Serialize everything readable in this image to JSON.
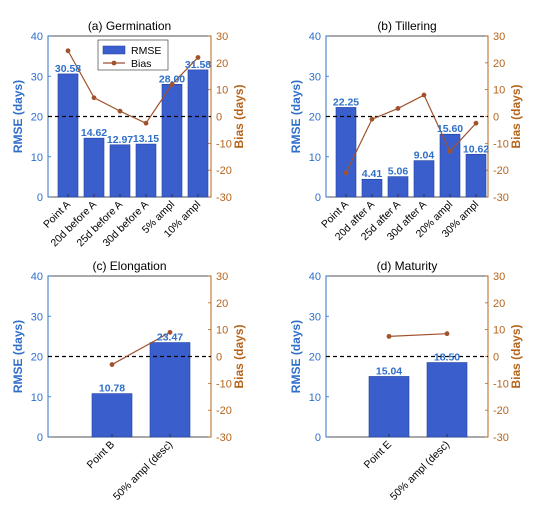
{
  "colors": {
    "rmse": "#3a5fcd",
    "rmse_edge": "#1f3f9e",
    "rmse_axis": "#2f6fc9",
    "bias": "#a0522d",
    "bias_axis": "#b5651d",
    "refline": "#000000"
  },
  "legend": {
    "rmse": "RMSE",
    "bias": "Bias"
  },
  "chart_data": [
    {
      "type": "bar",
      "title": "(a) Germination",
      "ylabel": "RMSE (days)",
      "y2label": "Bias (days)",
      "ylim": [
        0,
        40
      ],
      "y2lim": [
        -30,
        30
      ],
      "yticks": [
        0,
        10,
        20,
        30,
        40
      ],
      "y2ticks": [
        -30,
        -20,
        -10,
        0,
        10,
        20,
        30
      ],
      "categories": [
        "Point A",
        "20d before A",
        "25d before A",
        "30d before A",
        "5% ampl",
        "10% ampl"
      ],
      "series": [
        {
          "name": "RMSE",
          "type": "bar",
          "values": [
            30.58,
            14.62,
            12.97,
            13.15,
            28.0,
            31.58
          ],
          "labels": [
            "30.58",
            "14.62",
            "12.97",
            "13.15",
            "28.00",
            "31.58"
          ]
        },
        {
          "name": "Bias",
          "type": "line",
          "axis": "right",
          "values": [
            24.5,
            7.0,
            2.0,
            -2.5,
            12.0,
            22.0
          ]
        }
      ],
      "reference_line": {
        "value": 20,
        "style": "dashed"
      },
      "legend_position": "top"
    },
    {
      "type": "bar",
      "title": "(b) Tillering",
      "ylabel": "RMSE (days)",
      "y2label": "Bias (days)",
      "ylim": [
        0,
        40
      ],
      "y2lim": [
        -30,
        30
      ],
      "yticks": [
        0,
        10,
        20,
        30,
        40
      ],
      "y2ticks": [
        -30,
        -20,
        -10,
        0,
        10,
        20,
        30
      ],
      "categories": [
        "Point A",
        "20d after A",
        "25d after A",
        "30d after A",
        "20% ampl",
        "30% ampl"
      ],
      "series": [
        {
          "name": "RMSE",
          "type": "bar",
          "values": [
            22.25,
            4.41,
            5.06,
            9.04,
            15.6,
            10.62
          ],
          "labels": [
            "22.25",
            "4.41",
            "5.06",
            "9.04",
            "15.60",
            "10.62"
          ]
        },
        {
          "name": "Bias",
          "type": "line",
          "axis": "right",
          "values": [
            -21.0,
            -1.0,
            3.0,
            8.0,
            -13.0,
            -2.5
          ]
        }
      ],
      "reference_line": {
        "value": 20,
        "style": "dashed"
      }
    },
    {
      "type": "bar",
      "title": "(c) Elongation",
      "ylabel": "RMSE (days)",
      "y2label": "Bias (days)",
      "ylim": [
        0,
        40
      ],
      "y2lim": [
        -30,
        30
      ],
      "yticks": [
        0,
        10,
        20,
        30,
        40
      ],
      "y2ticks": [
        -30,
        -20,
        -10,
        0,
        10,
        20,
        30
      ],
      "categories": [
        "Point B",
        "50% ampl (desc)"
      ],
      "series": [
        {
          "name": "RMSE",
          "type": "bar",
          "values": [
            10.78,
            23.47
          ],
          "labels": [
            "10.78",
            "23.47"
          ]
        },
        {
          "name": "Bias",
          "type": "line",
          "axis": "right",
          "values": [
            -3.0,
            9.0
          ]
        }
      ],
      "reference_line": {
        "value": 20,
        "style": "dashed"
      }
    },
    {
      "type": "bar",
      "title": "(d) Maturity",
      "ylabel": "RMSE (days)",
      "y2label": "Bias (days)",
      "ylim": [
        0,
        40
      ],
      "y2lim": [
        -30,
        30
      ],
      "yticks": [
        0,
        10,
        20,
        30,
        40
      ],
      "y2ticks": [
        -30,
        -20,
        -10,
        0,
        10,
        20,
        30
      ],
      "categories": [
        "Point E",
        "50% ampl (desc)"
      ],
      "series": [
        {
          "name": "RMSE",
          "type": "bar",
          "values": [
            15.04,
            18.5
          ],
          "labels": [
            "15.04",
            "18.50"
          ]
        },
        {
          "name": "Bias",
          "type": "line",
          "axis": "right",
          "values": [
            7.5,
            8.5
          ]
        }
      ],
      "reference_line": {
        "value": 20,
        "style": "dashed"
      }
    }
  ]
}
